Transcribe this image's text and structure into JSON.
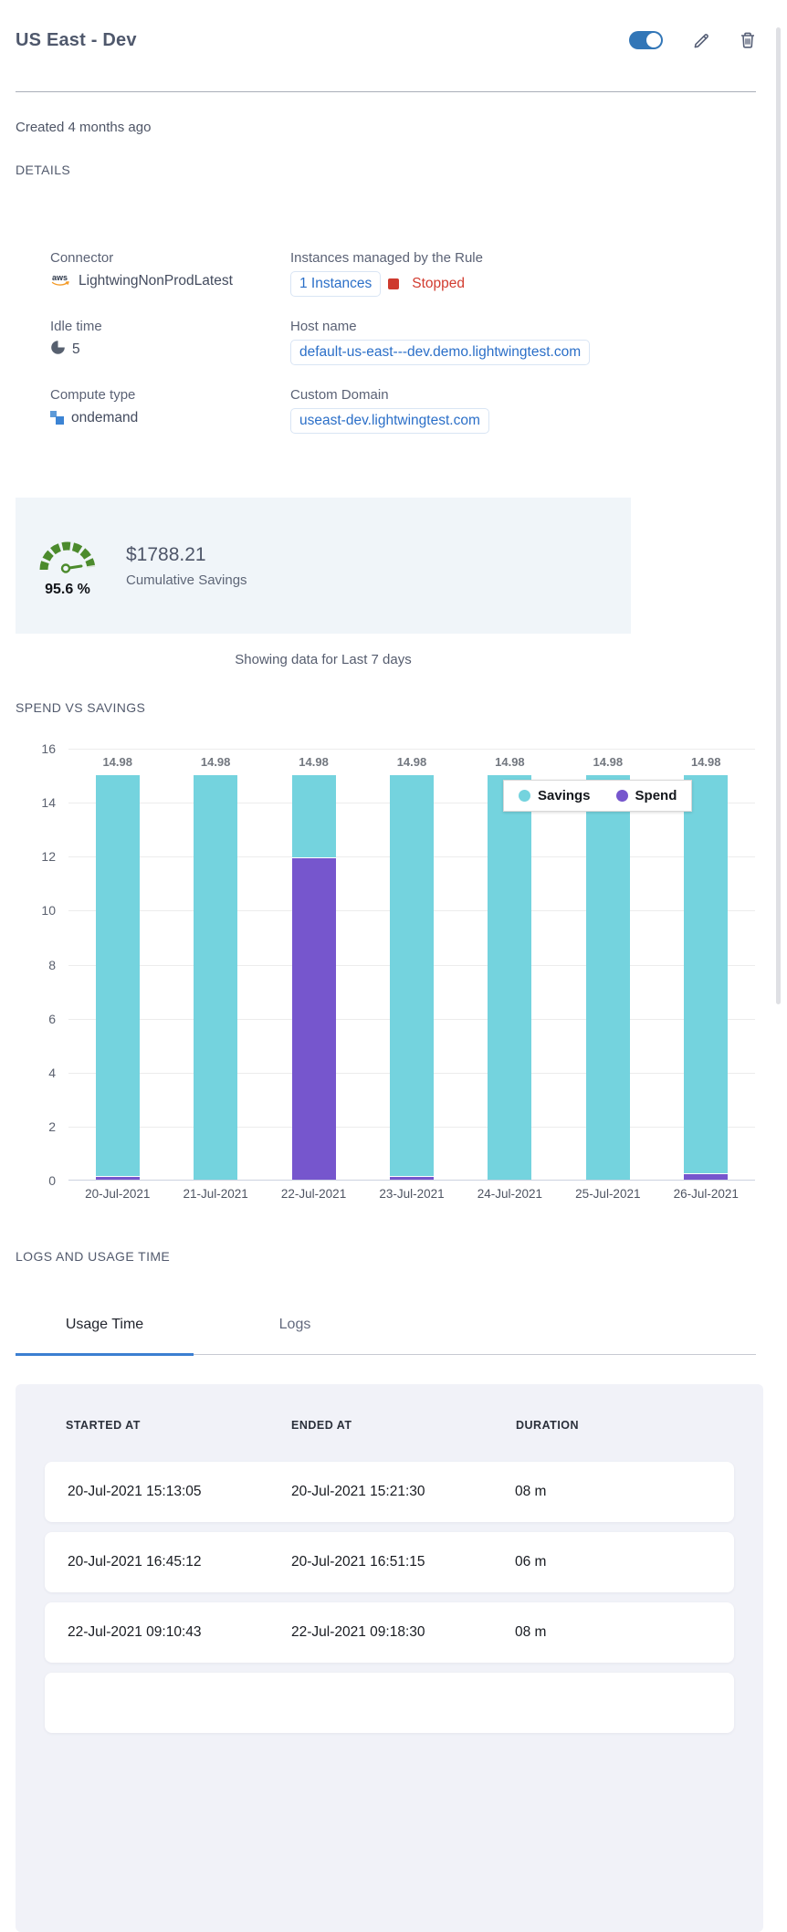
{
  "header": {
    "title": "US East - Dev",
    "toggle_on": true
  },
  "meta": {
    "created": "Created 4 months ago"
  },
  "details": {
    "heading": "DETAILS",
    "connector": {
      "label": "Connector",
      "value": "LightwingNonProdLatest"
    },
    "instances": {
      "label": "Instances managed by the Rule",
      "count": "1 Instances",
      "status": "Stopped"
    },
    "idle": {
      "label": "Idle time",
      "value": "5"
    },
    "host": {
      "label": "Host name",
      "url": "default-us-east---dev.demo.lightwingtest.com"
    },
    "compute": {
      "label": "Compute type",
      "value": "ondemand"
    },
    "domain": {
      "label": "Custom Domain",
      "url": "useast-dev.lightwingtest.com"
    }
  },
  "savings": {
    "percent": "95.6 %",
    "amount": "$1788.21",
    "caption": "Cumulative Savings"
  },
  "chart": {
    "note": "Showing data for Last 7 days",
    "heading": "SPEND VS SAVINGS"
  },
  "chart_data": {
    "type": "bar",
    "stacked": true,
    "title": "SPEND VS SAVINGS",
    "categories": [
      "20-Jul-2021",
      "21-Jul-2021",
      "22-Jul-2021",
      "23-Jul-2021",
      "24-Jul-2021",
      "25-Jul-2021",
      "26-Jul-2021"
    ],
    "series": [
      {
        "name": "Savings",
        "color": "#74d3de",
        "values": [
          14.86,
          14.98,
          3.03,
          14.86,
          14.98,
          14.98,
          14.73
        ]
      },
      {
        "name": "Spend",
        "color": "#7656cd",
        "values": [
          0.12,
          0.0,
          11.95,
          0.12,
          0.0,
          0.0,
          0.25
        ]
      }
    ],
    "bar_total_labels": [
      "14.98",
      "14.98",
      "14.98",
      "14.98",
      "14.98",
      "14.98",
      "14.98"
    ],
    "ylim": [
      0,
      16
    ],
    "yticks": [
      0,
      2,
      4,
      6,
      8,
      10,
      12,
      14,
      16
    ],
    "grid": true,
    "legend_position": "top-right-overlay"
  },
  "logs": {
    "heading": "LOGS AND USAGE TIME",
    "tabs": [
      {
        "label": "Usage Time",
        "active": true
      },
      {
        "label": "Logs",
        "active": false
      }
    ],
    "table": {
      "columns": [
        "STARTED AT",
        "ENDED AT",
        "DURATION"
      ],
      "rows": [
        [
          "20-Jul-2021 15:13:05",
          "20-Jul-2021 15:21:30",
          "08 m"
        ],
        [
          "20-Jul-2021 16:45:12",
          "20-Jul-2021 16:51:15",
          "06 m"
        ],
        [
          "22-Jul-2021 09:10:43",
          "22-Jul-2021 09:18:30",
          "08 m"
        ],
        [
          "",
          "",
          ""
        ]
      ]
    }
  },
  "icons": {
    "toggle": "toggle-switch-on",
    "edit": "pencil-icon",
    "delete": "trash-icon",
    "connector": "aws-icon",
    "idle": "pie-clock-icon",
    "compute": "squares-icon",
    "savings": "gauge-icon",
    "instance_status": "stopped-square-icon"
  },
  "colors": {
    "accent_blue": "#3276b7",
    "link_blue": "#2b6fc8",
    "status_red": "#d23c30",
    "gauge_green": "#4c8b2d",
    "savings_teal": "#74d3de",
    "spend_purple": "#7656cd",
    "card_bg": "#f0f5f9",
    "table_card_bg": "#f1f2f8"
  }
}
